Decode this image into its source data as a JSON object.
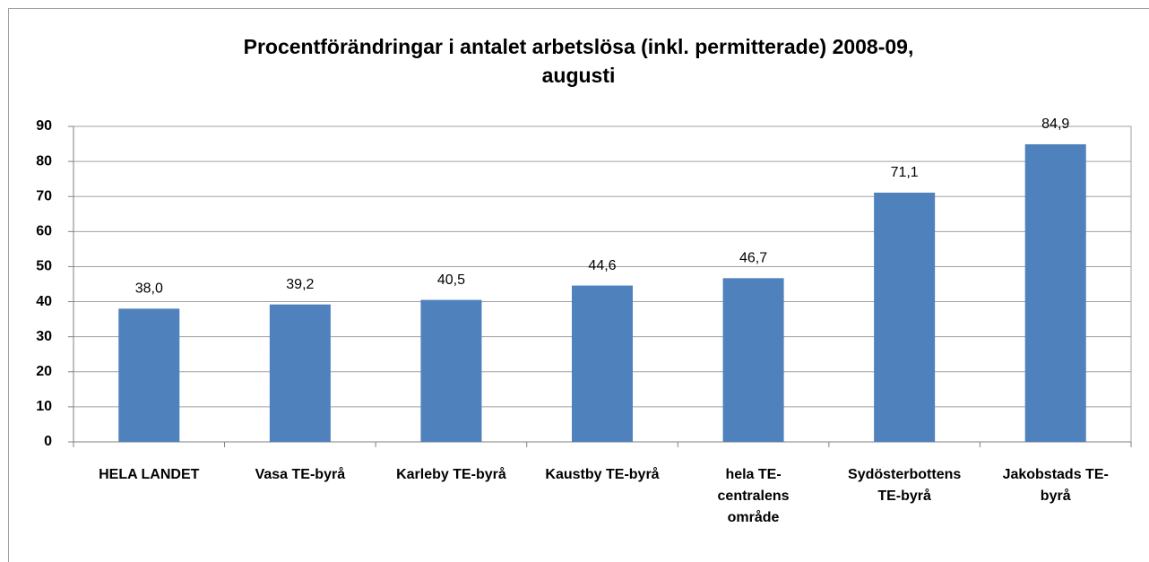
{
  "chart_data": {
    "type": "bar",
    "title": "Procentförändringar i antalet arbetslösa (inkl. permitterade) 2008-09,\naugusti",
    "categories": [
      "HELA LANDET",
      "Vasa TE-byrå",
      "Karleby TE-byrå",
      "Kaustby TE-byrå",
      "hela TE-centralens område",
      "Sydösterbottens TE-byrå",
      "Jakobstads TE-byrå"
    ],
    "values": [
      38.0,
      39.2,
      40.5,
      44.6,
      46.7,
      71.1,
      84.9
    ],
    "value_labels": [
      "38,0",
      "39,2",
      "40,5",
      "44,6",
      "46,7",
      "71,1",
      "84,9"
    ],
    "color": "#4f81bd",
    "ylim": [
      0,
      90
    ],
    "yticks": [
      0,
      10,
      20,
      30,
      40,
      50,
      60,
      70,
      80,
      90
    ],
    "grid": true
  }
}
